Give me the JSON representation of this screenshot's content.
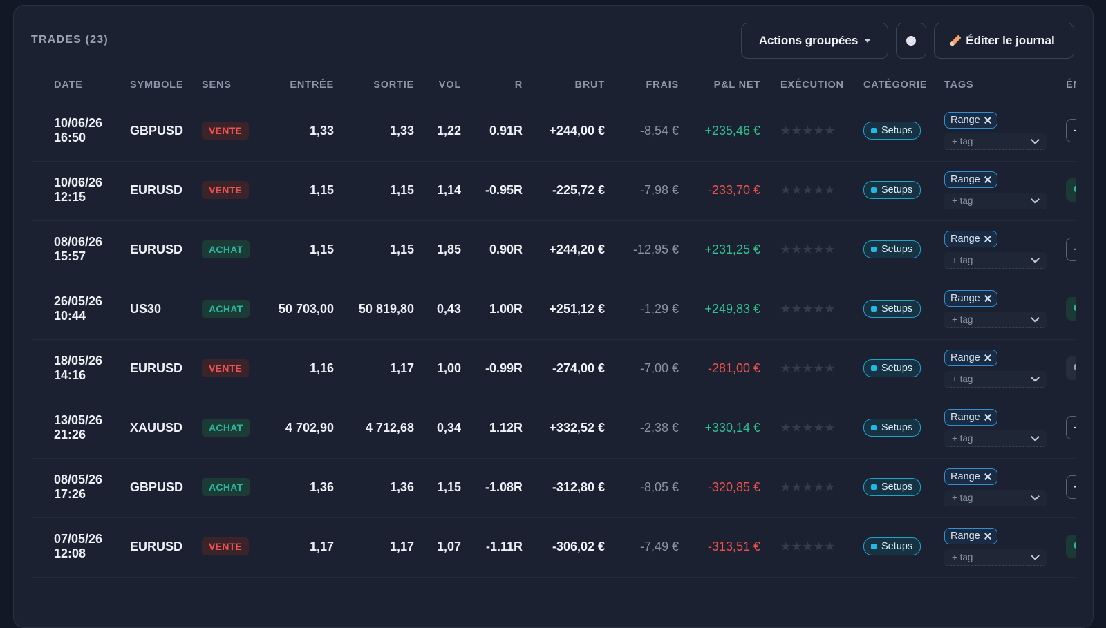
{
  "header": {
    "title": "TRADES (23)",
    "bulk_action": "Actions groupées",
    "edit_action": "Éditer le journal"
  },
  "table": {
    "columns": [
      "DATE",
      "SYMBOLE",
      "SENS",
      "ENTRÉE",
      "SORTIE",
      "VOL",
      "R",
      "BRUT",
      "FRAIS",
      "P&L NET",
      "EXÉCUTION",
      "CATÉGORIE",
      "TAGS",
      "ÉMO"
    ],
    "tag_placeholder": "+ tag",
    "rows": [
      {
        "date": "10/06/26",
        "time": "16:50",
        "symbol": "GBPUSD",
        "side": "VENTE",
        "side_color": "#f05252",
        "side_bg": "#3a2329",
        "entry": "1,33",
        "exit": "1,33",
        "vol": "1,22",
        "r": "0.91R",
        "gross": "+244,00 €",
        "fees": "-8,54 €",
        "net": "+235,46 €",
        "net_color": "#2ec28e",
        "category": "Setups",
        "tags": [
          "Range"
        ],
        "emotion": "—",
        "emotion_color": "#e6e9ef",
        "emotion_bg": "#1b2130",
        "emotion_border": "#5a6273"
      },
      {
        "date": "10/06/26",
        "time": "12:15",
        "symbol": "EURUSD",
        "side": "VENTE",
        "side_color": "#f05252",
        "side_bg": "#3a2329",
        "entry": "1,15",
        "exit": "1,15",
        "vol": "1,14",
        "r": "-0.95R",
        "gross": "-225,72 €",
        "fees": "-7,98 €",
        "net": "-233,70 €",
        "net_color": "#f0504a",
        "category": "Setups",
        "tags": [
          "Range"
        ],
        "emotion": "Cal",
        "emotion_color": "#2bb89a",
        "emotion_bg": "#1b3a35",
        "emotion_border": "#1b3a35"
      },
      {
        "date": "08/06/26",
        "time": "15:57",
        "symbol": "EURUSD",
        "side": "ACHAT",
        "side_color": "#2bb89a",
        "side_bg": "#1c3a36",
        "entry": "1,15",
        "exit": "1,15",
        "vol": "1,85",
        "r": "0.90R",
        "gross": "+244,20 €",
        "fees": "-12,95 €",
        "net": "+231,25 €",
        "net_color": "#2ec28e",
        "category": "Setups",
        "tags": [
          "Range"
        ],
        "emotion": "—",
        "emotion_color": "#e6e9ef",
        "emotion_bg": "#1b2130",
        "emotion_border": "#5a6273"
      },
      {
        "date": "26/05/26",
        "time": "10:44",
        "symbol": "US30",
        "side": "ACHAT",
        "side_color": "#2bb89a",
        "side_bg": "#1c3a36",
        "entry": "50 703,00",
        "exit": "50 819,80",
        "vol": "0,43",
        "r": "1.00R",
        "gross": "+251,12 €",
        "fees": "-1,29 €",
        "net": "+249,83 €",
        "net_color": "#2ec28e",
        "category": "Setups",
        "tags": [
          "Range"
        ],
        "emotion": "Cal",
        "emotion_color": "#2bb89a",
        "emotion_bg": "#1b3a35",
        "emotion_border": "#1b3a35"
      },
      {
        "date": "18/05/26",
        "time": "14:16",
        "symbol": "EURUSD",
        "side": "VENTE",
        "side_color": "#f05252",
        "side_bg": "#3a2329",
        "entry": "1,16",
        "exit": "1,17",
        "vol": "1,00",
        "r": "-0.99R",
        "gross": "-274,00 €",
        "fees": "-7,00 €",
        "net": "-281,00 €",
        "net_color": "#f0504a",
        "category": "Setups",
        "tags": [
          "Range"
        ],
        "emotion": "Co",
        "emotion_color": "#9aa2b1",
        "emotion_bg": "#262d3b",
        "emotion_border": "#262d3b"
      },
      {
        "date": "13/05/26",
        "time": "21:26",
        "symbol": "XAUUSD",
        "side": "ACHAT",
        "side_color": "#2bb89a",
        "side_bg": "#1c3a36",
        "entry": "4 702,90",
        "exit": "4 712,68",
        "vol": "0,34",
        "r": "1.12R",
        "gross": "+332,52 €",
        "fees": "-2,38 €",
        "net": "+330,14 €",
        "net_color": "#2ec28e",
        "category": "Setups",
        "tags": [
          "Range"
        ],
        "emotion": "—",
        "emotion_color": "#e6e9ef",
        "emotion_bg": "#1b2130",
        "emotion_border": "#5a6273"
      },
      {
        "date": "08/05/26",
        "time": "17:26",
        "symbol": "GBPUSD",
        "side": "ACHAT",
        "side_color": "#2bb89a",
        "side_bg": "#1c3a36",
        "entry": "1,36",
        "exit": "1,36",
        "vol": "1,15",
        "r": "-1.08R",
        "gross": "-312,80 €",
        "fees": "-8,05 €",
        "net": "-320,85 €",
        "net_color": "#f0504a",
        "category": "Setups",
        "tags": [
          "Range"
        ],
        "emotion": "—",
        "emotion_color": "#e6e9ef",
        "emotion_bg": "#1b2130",
        "emotion_border": "#5a6273"
      },
      {
        "date": "07/05/26",
        "time": "12:08",
        "symbol": "EURUSD",
        "side": "VENTE",
        "side_color": "#f05252",
        "side_bg": "#3a2329",
        "entry": "1,17",
        "exit": "1,17",
        "vol": "1,07",
        "r": "-1.11R",
        "gross": "-306,02 €",
        "fees": "-7,49 €",
        "net": "-313,51 €",
        "net_color": "#f0504a",
        "category": "Setups",
        "tags": [
          "Range"
        ],
        "emotion": "Cal",
        "emotion_color": "#2bb89a",
        "emotion_bg": "#1b3a35",
        "emotion_border": "#1b3a35"
      }
    ]
  }
}
